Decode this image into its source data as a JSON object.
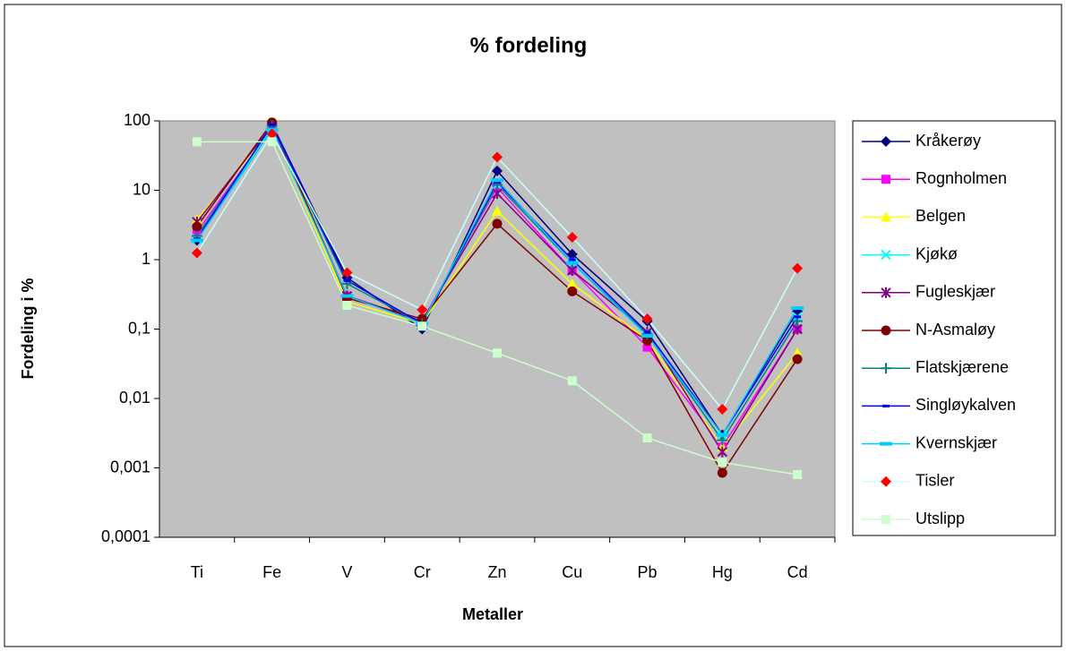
{
  "chart_data": {
    "type": "line",
    "title": "% fordeling",
    "x_label": "Metaller",
    "y_label": "Fordeling i %",
    "log_scale": true,
    "legend": "right",
    "categories": [
      "Ti",
      "Fe",
      "V",
      "Cr",
      "Zn",
      "Cu",
      "Pb",
      "Hg",
      "Cd"
    ],
    "ylim": [
      0.0001,
      100
    ],
    "yticks": [
      {
        "value": 0.0001,
        "label": "0,0001"
      },
      {
        "value": 0.001,
        "label": "0,001"
      },
      {
        "value": 0.01,
        "label": "0,01"
      },
      {
        "value": 0.1,
        "label": "0,1"
      },
      1,
      10,
      100
    ],
    "series": [
      {
        "name": "Kråkerøy",
        "color": "#000080",
        "marker": "diamond",
        "values": [
          1.9,
          90,
          0.55,
          0.1,
          19,
          1.2,
          0.13,
          0.003,
          0.18
        ]
      },
      {
        "name": "Rognholmen",
        "color": "#ff00ff",
        "marker": "square",
        "values": [
          2.5,
          80,
          0.3,
          0.13,
          11,
          0.7,
          0.055,
          0.002,
          0.1
        ]
      },
      {
        "name": "Belgen",
        "color": "#ffff00",
        "marker": "triangle",
        "values": [
          3.8,
          75,
          0.25,
          0.12,
          5,
          0.45,
          0.07,
          0.002,
          0.045
        ]
      },
      {
        "name": "Kjøkø",
        "color": "#00ffff",
        "marker": "x",
        "values": [
          2,
          80,
          0.3,
          0.12,
          12,
          0.9,
          0.08,
          0.003,
          0.15
        ]
      },
      {
        "name": "Fugleskjær",
        "color": "#800080",
        "marker": "star",
        "values": [
          3.5,
          85,
          0.3,
          0.13,
          9,
          0.7,
          0.09,
          0.0017,
          0.1
        ]
      },
      {
        "name": "N-Asmaløy",
        "color": "#800000",
        "marker": "circle",
        "values": [
          3,
          95,
          0.28,
          0.14,
          3.3,
          0.35,
          0.068,
          0.00085,
          0.037
        ]
      },
      {
        "name": "Flatskjærene",
        "color": "#008080",
        "marker": "plus",
        "values": [
          2.2,
          85,
          0.45,
          0.12,
          12,
          0.9,
          0.085,
          0.0025,
          0.13
        ]
      },
      {
        "name": "Singløykalven",
        "color": "#0000ff",
        "marker": "dash",
        "values": [
          2,
          88,
          0.5,
          0.12,
          13,
          1,
          0.09,
          0.003,
          0.15
        ]
      },
      {
        "name": "Kvernskjær",
        "color": "#00ccff",
        "marker": "bar",
        "values": [
          1.9,
          75,
          0.3,
          0.12,
          14,
          0.9,
          0.08,
          0.003,
          0.2
        ]
      },
      {
        "name": "Tisler",
        "color": "#ccffff",
        "marker_color": "#ff0000",
        "marker": "diamond",
        "values": [
          1.25,
          65,
          0.65,
          0.19,
          30,
          2.1,
          0.14,
          0.007,
          0.75
        ]
      },
      {
        "name": "Utslipp",
        "color": "#ccffcc",
        "marker": "square",
        "values": [
          50,
          50,
          0.22,
          0.11,
          0.045,
          0.018,
          0.0027,
          0.0012,
          0.0008
        ]
      }
    ]
  }
}
